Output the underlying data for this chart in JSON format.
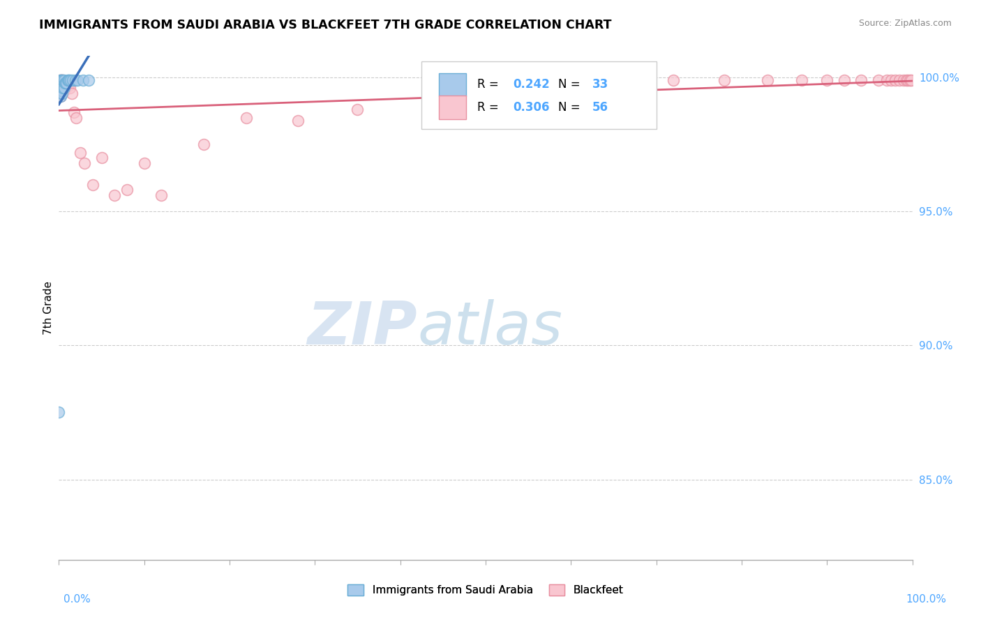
{
  "title": "IMMIGRANTS FROM SAUDI ARABIA VS BLACKFEET 7TH GRADE CORRELATION CHART",
  "source": "Source: ZipAtlas.com",
  "ylabel": "7th Grade",
  "xlim": [
    0.0,
    1.0
  ],
  "ylim": [
    0.82,
    1.008
  ],
  "yticks": [
    0.85,
    0.9,
    0.95,
    1.0
  ],
  "ytick_labels": [
    "85.0%",
    "90.0%",
    "95.0%",
    "100.0%"
  ],
  "legend1_label": "Immigrants from Saudi Arabia",
  "legend2_label": "Blackfeet",
  "r1": "0.242",
  "n1": "33",
  "r2": "0.306",
  "n2": "56",
  "color1_face": "#a8caeb",
  "color1_edge": "#6baed6",
  "color2_face": "#f9c6d0",
  "color2_edge": "#e88fa0",
  "line1_color": "#3a6fba",
  "line2_color": "#d9607a",
  "watermark_color": "#c8dff0",
  "legend_box_color": "#f5f5f5",
  "legend_border_color": "#cccccc",
  "ytick_color": "#4da6ff",
  "xtick_color": "#4da6ff",
  "saudi_x": [
    0.001,
    0.001,
    0.001,
    0.001,
    0.001,
    0.002,
    0.002,
    0.002,
    0.002,
    0.002,
    0.003,
    0.003,
    0.003,
    0.004,
    0.004,
    0.004,
    0.005,
    0.005,
    0.006,
    0.006,
    0.007,
    0.008,
    0.009,
    0.01,
    0.011,
    0.012,
    0.014,
    0.016,
    0.019,
    0.022,
    0.028,
    0.035,
    0.0
  ],
  "saudi_y": [
    0.999,
    0.998,
    0.997,
    0.996,
    0.994,
    0.999,
    0.998,
    0.997,
    0.995,
    0.993,
    0.999,
    0.997,
    0.995,
    0.999,
    0.997,
    0.994,
    0.999,
    0.996,
    0.999,
    0.996,
    0.998,
    0.998,
    0.998,
    0.999,
    0.999,
    0.999,
    0.999,
    0.999,
    0.999,
    0.999,
    0.999,
    0.999,
    0.875
  ],
  "blackfeet_x": [
    0.001,
    0.001,
    0.001,
    0.002,
    0.002,
    0.002,
    0.002,
    0.003,
    0.003,
    0.003,
    0.004,
    0.004,
    0.005,
    0.005,
    0.006,
    0.006,
    0.007,
    0.008,
    0.009,
    0.01,
    0.011,
    0.013,
    0.015,
    0.018,
    0.02,
    0.025,
    0.03,
    0.04,
    0.05,
    0.065,
    0.08,
    0.1,
    0.12,
    0.17,
    0.22,
    0.28,
    0.35,
    0.55,
    0.65,
    0.72,
    0.78,
    0.83,
    0.87,
    0.9,
    0.92,
    0.94,
    0.96,
    0.97,
    0.975,
    0.98,
    0.985,
    0.99,
    0.993,
    0.995,
    0.997,
    0.999
  ],
  "blackfeet_y": [
    0.999,
    0.998,
    0.996,
    0.999,
    0.997,
    0.995,
    0.993,
    0.999,
    0.997,
    0.994,
    0.999,
    0.996,
    0.999,
    0.997,
    0.998,
    0.995,
    0.997,
    0.996,
    0.997,
    0.997,
    0.997,
    0.996,
    0.994,
    0.987,
    0.985,
    0.972,
    0.968,
    0.96,
    0.97,
    0.956,
    0.958,
    0.968,
    0.956,
    0.975,
    0.985,
    0.984,
    0.988,
    0.995,
    0.999,
    0.999,
    0.999,
    0.999,
    0.999,
    0.999,
    0.999,
    0.999,
    0.999,
    0.999,
    0.999,
    0.999,
    0.999,
    0.999,
    0.999,
    0.999,
    0.999,
    0.999
  ]
}
